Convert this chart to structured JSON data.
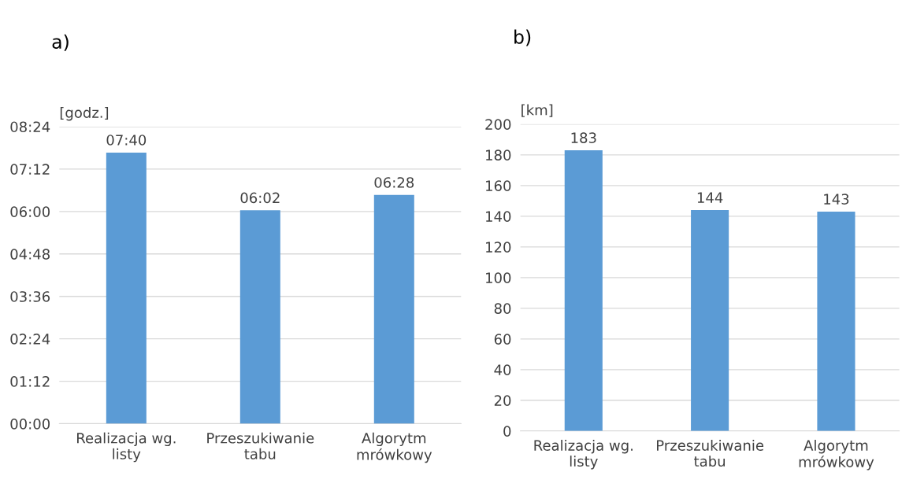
{
  "chart_data": [
    {
      "type": "bar",
      "title": "a)",
      "ylabel": "[godz.]",
      "categories": [
        "Realizacja wg.\nlisty",
        "Przeszukiwanie\ntabu",
        "Algorytm\nmrówkowy"
      ],
      "values": [
        7.6667,
        6.0333,
        6.4667
      ],
      "value_labels": [
        "07:40",
        "06:02",
        "06:28"
      ],
      "color": "#5b9bd5",
      "ylim": [
        0,
        8.4
      ],
      "yticks": [
        {
          "value": 0,
          "label": "00:00"
        },
        {
          "value": 1.2,
          "label": "01:12"
        },
        {
          "value": 2.4,
          "label": "02:24"
        },
        {
          "value": 3.6,
          "label": "03:36"
        },
        {
          "value": 4.8,
          "label": "04:48"
        },
        {
          "value": 6.0,
          "label": "06:00"
        },
        {
          "value": 7.2,
          "label": "07:12"
        },
        {
          "value": 8.4,
          "label": "08:24"
        }
      ],
      "grid": "y"
    },
    {
      "type": "bar",
      "title": "b)",
      "ylabel": "[km]",
      "categories": [
        "Realizacja wg.\nlisty",
        "Przeszukiwanie\ntabu",
        "Algorytm\nmrówkowy"
      ],
      "values": [
        183,
        144,
        143
      ],
      "data_labels": true,
      "color": "#5b9bd5",
      "ylim": [
        0,
        200
      ],
      "yticks": [
        0,
        20,
        40,
        60,
        80,
        100,
        120,
        140,
        160,
        180,
        200
      ],
      "grid": "y"
    }
  ]
}
